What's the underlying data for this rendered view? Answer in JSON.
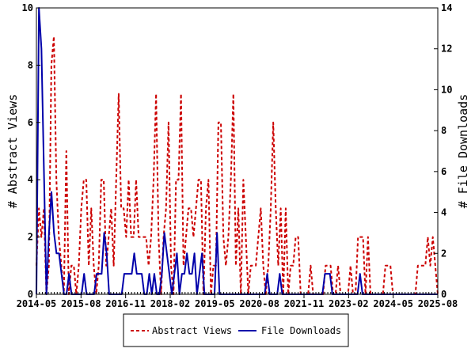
{
  "chart_data": {
    "type": "line",
    "x_tick_labels": [
      "2014-05",
      "2015-08",
      "2016-11",
      "2018-02",
      "2019-05",
      "2020-08",
      "2021-11",
      "2023-02",
      "2024-05",
      "2025-08"
    ],
    "x_start": "2014-05",
    "y_left": {
      "label": "# Abstract Views",
      "ticks": [
        0,
        2,
        4,
        6,
        8,
        10
      ],
      "lim": [
        0,
        10
      ]
    },
    "y_right": {
      "label": "# File Downloads",
      "ticks": [
        0,
        2,
        4,
        6,
        8,
        10,
        12,
        14
      ],
      "lim": [
        0,
        14
      ]
    },
    "grid": false,
    "legend_placement": "bottom-center",
    "series": [
      {
        "name": "Abstract Views",
        "axis": "left",
        "color": "#cc0000",
        "style": "dashed",
        "values": [
          1,
          3,
          2,
          3,
          0,
          1,
          8,
          9,
          4,
          2,
          1,
          0,
          5,
          0,
          1,
          1,
          0,
          1,
          3,
          4,
          4,
          1,
          3,
          1,
          0,
          1,
          4,
          4,
          1,
          2,
          3,
          1,
          4,
          7,
          3,
          3,
          2,
          4,
          2,
          2,
          4,
          2,
          2,
          2,
          2,
          1,
          2,
          4,
          7,
          2,
          0,
          2,
          3,
          6,
          1,
          0,
          4,
          4,
          7,
          1,
          2,
          3,
          3,
          2,
          3,
          4,
          4,
          0,
          3,
          4,
          0,
          1,
          1,
          6,
          6,
          2,
          1,
          2,
          4,
          7,
          1,
          3,
          0,
          4,
          2,
          0,
          1,
          1,
          1,
          2,
          3,
          1,
          0,
          1,
          3,
          6,
          3,
          1,
          3,
          0,
          3,
          0,
          1,
          1,
          2,
          2,
          0,
          0,
          0,
          0,
          1,
          0,
          0,
          0,
          0,
          0,
          1,
          1,
          1,
          0,
          0,
          1,
          0,
          0,
          0,
          0,
          1,
          0,
          0,
          2,
          2,
          2,
          0,
          2,
          0,
          0,
          0,
          0,
          0,
          0,
          1,
          1,
          1,
          0,
          0,
          0,
          0,
          0,
          0,
          0,
          0,
          0,
          0,
          1,
          1,
          1,
          1,
          2,
          1,
          2,
          1,
          0
        ]
      },
      {
        "name": "File Downloads",
        "axis": "right",
        "color": "#0000aa",
        "style": "solid",
        "values": [
          0,
          14,
          12,
          6,
          0,
          3,
          5,
          3,
          2,
          2,
          1,
          0,
          0,
          1,
          0,
          0,
          0,
          0,
          0,
          1,
          0,
          0,
          0,
          0,
          1,
          1,
          1,
          3,
          2,
          0,
          0,
          0,
          0,
          0,
          0,
          1,
          1,
          1,
          1,
          2,
          1,
          1,
          1,
          0,
          0,
          1,
          0,
          1,
          0,
          0,
          1,
          3,
          2,
          1,
          0,
          1,
          2,
          0,
          1,
          1,
          2,
          1,
          1,
          2,
          0,
          1,
          2,
          0,
          0,
          0,
          0,
          0,
          3,
          0,
          0,
          0,
          0,
          0,
          0,
          0,
          0,
          0,
          0,
          0,
          0,
          0,
          0,
          0,
          0,
          0,
          0,
          0,
          1,
          0,
          0,
          0,
          0,
          1,
          0,
          0,
          0,
          0,
          0,
          0,
          0,
          0,
          0,
          0,
          0,
          0,
          0,
          0,
          0,
          0,
          0,
          1,
          1,
          1,
          0,
          0,
          0,
          0,
          0,
          0,
          0,
          0,
          0,
          0,
          0,
          1,
          0,
          0,
          0,
          0,
          0,
          0,
          0,
          0,
          0,
          0,
          0,
          0,
          0,
          0,
          0,
          0,
          0,
          0,
          0,
          0,
          0,
          0,
          0,
          0,
          0,
          0,
          0,
          0,
          0,
          0,
          0
        ]
      }
    ]
  }
}
